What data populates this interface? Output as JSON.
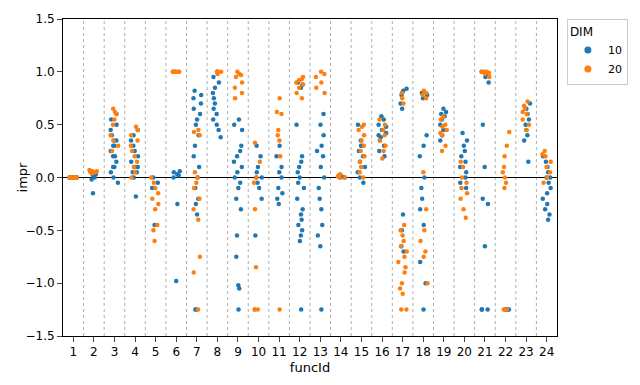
{
  "chart_data": {
    "type": "strip",
    "x_label": "funcId",
    "y_label": "impr",
    "legend": "upper right",
    "legend_title": "DIM",
    "grid": false,
    "marker": "circle",
    "x": [
      1,
      2,
      3,
      4,
      5,
      6,
      7,
      8,
      9,
      10,
      11,
      12,
      13,
      14,
      15,
      16,
      17,
      18,
      19,
      20,
      21,
      22,
      23,
      24
    ],
    "xlim": [
      0.5,
      24.5
    ],
    "xticks": [
      1,
      2,
      3,
      4,
      5,
      6,
      7,
      8,
      9,
      10,
      11,
      12,
      13,
      14,
      15,
      16,
      17,
      18,
      19,
      20,
      21,
      22,
      23,
      24
    ],
    "ylim": [
      -1.5,
      1.5
    ],
    "yticks": [
      {
        "value": -1.5,
        "label": "−1.5"
      },
      {
        "value": -1.0,
        "label": "−1.0"
      },
      {
        "value": -0.5,
        "label": "−0.5"
      },
      {
        "value": 0.0,
        "label": "0.0"
      },
      {
        "value": 0.5,
        "label": "0.5"
      },
      {
        "value": 1.0,
        "label": "1.0"
      },
      {
        "value": 1.5,
        "label": "1.5"
      }
    ],
    "series": [
      {
        "name": "10",
        "color": "#1f77b4",
        "values": [
          [
            0,
            0,
            0,
            0,
            0,
            0,
            0,
            0
          ],
          [
            -0.15,
            -0.02,
            0.0,
            0.02,
            0.05,
            0.06,
            0.03
          ],
          [
            0.0,
            0.05,
            0.1,
            0.15,
            0.2,
            0.25,
            0.3,
            0.35,
            0.4,
            0.45,
            0.5,
            0.55,
            0.6,
            0.35,
            0.3,
            0.2,
            0.1,
            -0.05
          ],
          [
            -0.18,
            0.0,
            0.05,
            0.1,
            0.15,
            0.2,
            0.25,
            0.3,
            0.35,
            0.4,
            0.45,
            0.1,
            0.05
          ],
          [
            -0.05,
            -0.1,
            -0.45,
            0.0
          ],
          [
            0.05,
            0.02,
            0.0,
            0.06,
            -0.25,
            -0.98,
            0.03
          ],
          [
            0.82,
            0.78,
            0.75,
            0.7,
            0.65,
            0.6,
            0.55,
            0.5,
            0.4,
            0.3,
            0.2,
            0.1,
            0.0,
            -0.1,
            -0.2,
            -0.25,
            -0.35,
            -1.25,
            -1.25
          ],
          [
            0.95,
            0.9,
            0.85,
            0.8,
            0.75,
            0.7,
            0.65,
            0.6,
            0.55,
            0.5,
            0.45,
            0.38
          ],
          [
            0.55,
            0.5,
            0.45,
            0.3,
            0.25,
            0.2,
            0.15,
            0.1,
            0.05,
            0.0,
            -0.05,
            -0.1,
            -0.2,
            -0.3,
            -0.55,
            -0.75,
            -1.02,
            -1.05,
            -1.25
          ],
          [
            0.3,
            0.2,
            0.1,
            0.05,
            0.0,
            0.0,
            -0.05,
            -0.1,
            -0.2,
            -0.55
          ],
          [
            0.3,
            0.2,
            0.1,
            0.05,
            0.0,
            -0.1,
            -0.15,
            -0.2,
            -0.25
          ],
          [
            0.9,
            0.88,
            0.85,
            0.5,
            0.2,
            0.15,
            0.1,
            0.05,
            0.0,
            -0.05,
            -0.1,
            -0.2,
            -0.3,
            -0.35,
            -0.4,
            -0.45,
            -0.5,
            -0.55,
            -0.6,
            -1.25
          ],
          [
            0.6,
            0.5,
            0.4,
            0.3,
            0.25,
            0.2,
            0.1,
            0.0,
            -0.1,
            -0.2,
            -0.3,
            -0.45,
            -0.55,
            -0.65,
            -1.25
          ],
          [
            0.0,
            0.01,
            0.02,
            0.0
          ],
          [
            0.5,
            0.35,
            0.3,
            0.25,
            0.2,
            0.15,
            0.1,
            0.05,
            0.0,
            -0.05,
            0.3
          ],
          [
            0.58,
            0.55,
            0.5,
            0.48,
            0.45,
            0.42,
            0.4,
            0.38,
            0.35,
            0.3,
            0.25,
            0.2
          ],
          [
            0.84,
            0.82,
            0.8,
            0.78,
            0.7,
            0.65,
            -0.35,
            -0.5,
            -0.65,
            -0.7
          ],
          [
            0.8,
            0.78,
            0.75,
            0.4,
            0.3,
            0.2,
            0.0,
            -0.1,
            -0.2,
            -0.3,
            -0.45,
            -0.8,
            -1.0,
            -1.25
          ],
          [
            0.65,
            0.62,
            0.6,
            0.58,
            0.55,
            0.5,
            0.45,
            0.4,
            0.35
          ],
          [
            0.42,
            0.35,
            0.3,
            0.25,
            0.2,
            0.15,
            0.1,
            0.05,
            0.0,
            -0.05,
            -0.1
          ],
          [
            1.0,
            0.98,
            0.95,
            0.9,
            0.5,
            0.1,
            -0.2,
            -0.25,
            -0.65,
            -1.25,
            -1.25,
            -1.25
          ],
          [
            -1.25,
            -1.25,
            -1.25,
            -1.25
          ],
          [
            0.7,
            0.65,
            0.6,
            0.55,
            0.5,
            0.45,
            0.4,
            0.35,
            0.15
          ],
          [
            0.2,
            0.15,
            0.1,
            0.05,
            0.0,
            0.0,
            -0.05,
            -0.1,
            -0.15,
            -0.2,
            -0.25,
            -0.3,
            -0.35,
            -0.4
          ]
        ]
      },
      {
        "name": "20",
        "color": "#ff7f0e",
        "values": [
          [
            0,
            0,
            0,
            0,
            0,
            0,
            0,
            0
          ],
          [
            0.05,
            0.06,
            0.07,
            0.06,
            0.05,
            0.04
          ],
          [
            0.65,
            0.62,
            0.6,
            0.55,
            0.5,
            0.4,
            0.35,
            0.3,
            0.25
          ],
          [
            0.48,
            0.45,
            0.4,
            0.35,
            0.3,
            0.25,
            0.2,
            0.15,
            0.1,
            0.05,
            0.0
          ],
          [
            -0.1,
            -0.15,
            -0.2,
            -0.25,
            -0.3,
            -0.45,
            -0.5,
            -0.6,
            -0.05,
            0.0
          ],
          [
            1.0,
            1.0,
            1.0,
            1.0,
            1.0,
            1.0,
            1.0
          ],
          [
            0.45,
            0.43,
            0.4,
            0.05,
            0.0,
            -0.05,
            -0.1,
            -0.2,
            -0.3,
            -0.4,
            -0.75,
            -0.9,
            -1.25
          ],
          [
            1.0,
            1.0,
            1.0,
            1.0,
            1.0,
            1.0,
            0.98
          ],
          [
            1.0,
            0.98,
            0.97,
            0.95,
            0.9,
            0.85,
            0.8,
            0.75
          ],
          [
            0.33,
            0.15,
            0.0,
            -0.05,
            -0.3,
            -0.85,
            -1.25,
            -1.25,
            -1.25
          ],
          [
            0.75,
            0.62,
            0.6,
            0.45,
            0.4,
            0.35,
            0.2,
            -1.25
          ],
          [
            0.95,
            0.93,
            0.92,
            0.9,
            0.88,
            0.85,
            0.8,
            0.75
          ],
          [
            1.0,
            0.98,
            0.95,
            0.9,
            0.85,
            0.8
          ],
          [
            0.0,
            0.01,
            0.02,
            0.03,
            0.0
          ],
          [
            0.5,
            0.48,
            0.45,
            0.4,
            0.35,
            0.3,
            0.25,
            0.2,
            0.15,
            0.1,
            0.05,
            0.0
          ],
          [
            0.55,
            0.5,
            0.45,
            0.4,
            0.35,
            0.3,
            0.25,
            0.18
          ],
          [
            0.8,
            0.75,
            0.7,
            -0.45,
            -0.5,
            -0.55,
            -0.6,
            -0.65,
            -0.7,
            -0.75,
            -0.8,
            -0.85,
            -0.9,
            -1.0,
            -1.05,
            -1.1,
            -1.25,
            -1.25
          ],
          [
            0.82,
            0.8,
            0.78,
            0.75,
            0.05,
            -0.3,
            -0.5,
            -0.6,
            -0.7,
            -0.75,
            -1.0
          ],
          [
            0.58,
            0.55,
            0.5,
            0.48,
            0.45,
            0.42,
            0.4,
            0.3,
            0.25
          ],
          [
            0.15,
            0.1,
            0.0,
            -0.05,
            -0.1,
            -0.15,
            -0.2,
            -0.3,
            -0.38
          ],
          [
            1.0,
            1.0,
            1.0,
            0.99,
            0.98,
            0.95
          ],
          [
            0.43,
            0.3,
            0.2,
            0.1,
            0.05,
            0.0,
            -0.05,
            -0.1,
            -1.25,
            -1.25
          ],
          [
            0.72,
            0.68,
            0.65,
            0.62,
            0.6,
            0.55,
            0.5,
            0.45
          ],
          [
            0.25,
            0.22,
            0.2,
            0.15,
            0.1,
            0.05,
            0.0,
            -0.05
          ]
        ]
      }
    ]
  }
}
